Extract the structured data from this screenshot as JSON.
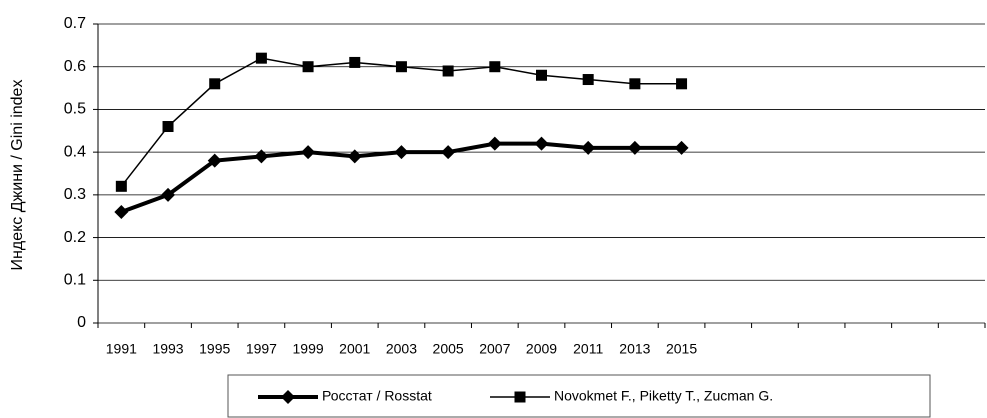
{
  "chart_data": {
    "type": "line",
    "y_label": "Индекс Джини / Gini index",
    "categories": [
      "1991",
      "1993",
      "1995",
      "1997",
      "1999",
      "2001",
      "2003",
      "2005",
      "2007",
      "2009",
      "2011",
      "2013",
      "2015",
      null,
      null,
      null,
      null,
      null,
      null
    ],
    "series": [
      {
        "name": "Росстат / Rosstat",
        "color": "#000000",
        "marker": "diamond",
        "line_width": 4,
        "values": [
          0.26,
          0.3,
          0.38,
          0.39,
          0.4,
          0.39,
          0.4,
          0.4,
          0.42,
          0.42,
          0.41,
          0.41,
          0.41,
          null,
          null,
          null,
          null,
          null,
          null
        ]
      },
      {
        "name": "Novokmet F., Piketty T.,  Zucman G.",
        "color": "#000000",
        "marker": "square",
        "line_width": 1.5,
        "values": [
          0.32,
          0.46,
          0.56,
          0.62,
          0.6,
          0.61,
          0.6,
          0.59,
          0.6,
          0.58,
          0.57,
          0.56,
          0.56,
          null,
          null,
          null,
          null,
          null,
          null
        ]
      }
    ],
    "ylim": [
      0,
      0.7
    ],
    "yticks": [
      0,
      0.1,
      0.2,
      0.3,
      0.4,
      0.5,
      0.6,
      0.7
    ],
    "grid": true,
    "legend": "bottom"
  }
}
